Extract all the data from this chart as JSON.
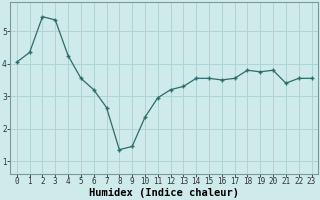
{
  "x": [
    0,
    1,
    2,
    3,
    4,
    5,
    6,
    7,
    8,
    9,
    10,
    11,
    12,
    13,
    14,
    15,
    16,
    17,
    18,
    19,
    20,
    21,
    22,
    23
  ],
  "y": [
    4.05,
    4.35,
    5.45,
    5.35,
    4.25,
    3.55,
    3.2,
    2.65,
    1.35,
    1.45,
    2.35,
    2.95,
    3.2,
    3.3,
    3.55,
    3.55,
    3.5,
    3.55,
    3.8,
    3.75,
    3.8,
    3.4,
    3.55,
    3.55
  ],
  "line_color": "#2e6b6b",
  "marker": "+",
  "marker_size": 3.5,
  "marker_linewidth": 1.0,
  "line_width": 0.9,
  "bg_color": "#ceeaea",
  "grid_color": "#b0d4d4",
  "xlabel": "Humidex (Indice chaleur)",
  "ylim": [
    0.6,
    5.9
  ],
  "xlim": [
    -0.5,
    23.5
  ],
  "yticks": [
    1,
    2,
    3,
    4,
    5
  ],
  "xticks": [
    0,
    1,
    2,
    3,
    4,
    5,
    6,
    7,
    8,
    9,
    10,
    11,
    12,
    13,
    14,
    15,
    16,
    17,
    18,
    19,
    20,
    21,
    22,
    23
  ],
  "tick_label_fontsize": 5.5,
  "xlabel_fontsize": 7.5,
  "xlabel_fontweight": "bold"
}
